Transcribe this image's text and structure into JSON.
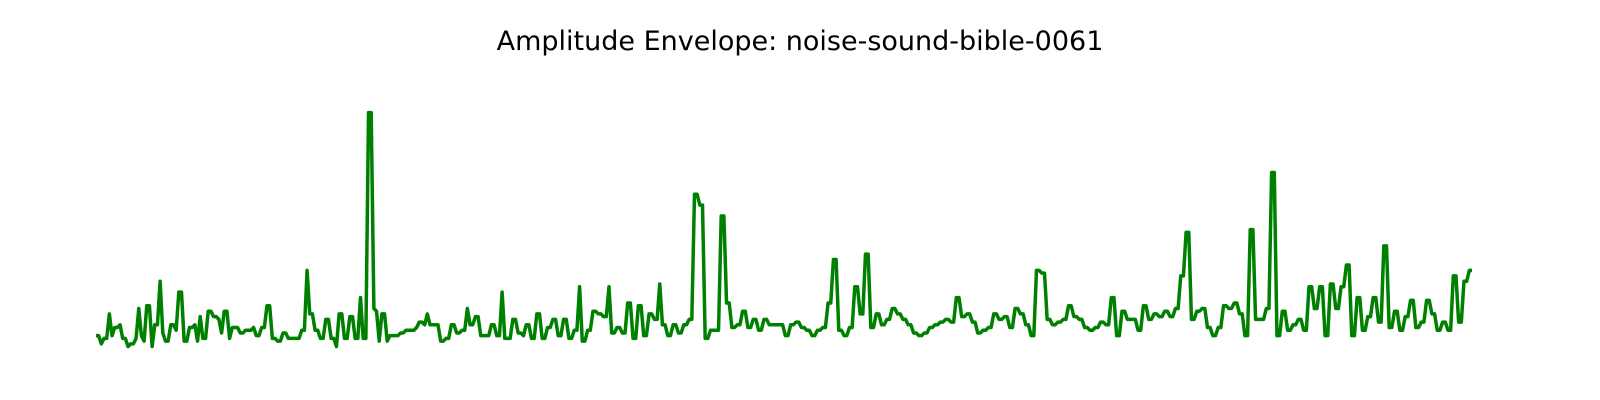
{
  "chart_data": {
    "type": "line",
    "title": "Amplitude Envelope: noise-sound-bible-0061",
    "xlabel": "",
    "ylabel": "",
    "axes_visible": false,
    "grid": false,
    "legend": "none",
    "ylim": [
      0,
      1.0
    ],
    "series": [
      {
        "color": "#008000",
        "values": [
          0.06,
          0.06,
          0.03,
          0.05,
          0.05,
          0.14,
          0.06,
          0.09,
          0.09,
          0.1,
          0.05,
          0.05,
          0.02,
          0.03,
          0.03,
          0.05,
          0.16,
          0.06,
          0.04,
          0.17,
          0.17,
          0.02,
          0.1,
          0.1,
          0.26,
          0.07,
          0.04,
          0.04,
          0.1,
          0.1,
          0.08,
          0.22,
          0.22,
          0.04,
          0.04,
          0.09,
          0.09,
          0.1,
          0.04,
          0.13,
          0.05,
          0.05,
          0.15,
          0.15,
          0.13,
          0.13,
          0.12,
          0.07,
          0.15,
          0.15,
          0.05,
          0.09,
          0.09,
          0.09,
          0.07,
          0.07,
          0.08,
          0.08,
          0.08,
          0.09,
          0.06,
          0.06,
          0.09,
          0.09,
          0.17,
          0.17,
          0.05,
          0.05,
          0.04,
          0.04,
          0.07,
          0.07,
          0.05,
          0.05,
          0.05,
          0.05,
          0.05,
          0.08,
          0.08,
          0.3,
          0.14,
          0.14,
          0.08,
          0.08,
          0.05,
          0.05,
          0.12,
          0.12,
          0.05,
          0.05,
          0.02,
          0.14,
          0.14,
          0.05,
          0.05,
          0.13,
          0.13,
          0.05,
          0.05,
          0.2,
          0.05,
          0.05,
          0.88,
          0.88,
          0.16,
          0.15,
          0.04,
          0.14,
          0.14,
          0.04,
          0.06,
          0.06,
          0.06,
          0.06,
          0.07,
          0.07,
          0.08,
          0.08,
          0.08,
          0.08,
          0.09,
          0.11,
          0.11,
          0.1,
          0.14,
          0.1,
          0.1,
          0.1,
          0.1,
          0.04,
          0.04,
          0.05,
          0.05,
          0.1,
          0.1,
          0.07,
          0.07,
          0.08,
          0.08,
          0.16,
          0.1,
          0.1,
          0.13,
          0.13,
          0.06,
          0.06,
          0.06,
          0.06,
          0.1,
          0.1,
          0.06,
          0.06,
          0.22,
          0.05,
          0.05,
          0.05,
          0.12,
          0.12,
          0.07,
          0.07,
          0.06,
          0.1,
          0.1,
          0.05,
          0.05,
          0.14,
          0.14,
          0.05,
          0.05,
          0.09,
          0.09,
          0.12,
          0.12,
          0.06,
          0.06,
          0.12,
          0.12,
          0.05,
          0.05,
          0.08,
          0.08,
          0.24,
          0.04,
          0.04,
          0.08,
          0.08,
          0.15,
          0.15,
          0.14,
          0.14,
          0.13,
          0.13,
          0.24,
          0.07,
          0.07,
          0.09,
          0.09,
          0.07,
          0.07,
          0.18,
          0.18,
          0.05,
          0.05,
          0.17,
          0.17,
          0.06,
          0.06,
          0.14,
          0.14,
          0.12,
          0.12,
          0.25,
          0.1,
          0.1,
          0.06,
          0.06,
          0.1,
          0.1,
          0.07,
          0.07,
          0.1,
          0.1,
          0.12,
          0.12,
          0.58,
          0.58,
          0.54,
          0.54,
          0.05,
          0.05,
          0.08,
          0.08,
          0.08,
          0.08,
          0.5,
          0.5,
          0.18,
          0.18,
          0.09,
          0.09,
          0.1,
          0.1,
          0.15,
          0.15,
          0.09,
          0.09,
          0.12,
          0.12,
          0.08,
          0.08,
          0.12,
          0.12,
          0.1,
          0.1,
          0.1,
          0.1,
          0.1,
          0.1,
          0.06,
          0.06,
          0.1,
          0.1,
          0.11,
          0.11,
          0.09,
          0.09,
          0.08,
          0.08,
          0.06,
          0.06,
          0.08,
          0.08,
          0.09,
          0.09,
          0.18,
          0.18,
          0.34,
          0.34,
          0.08,
          0.08,
          0.06,
          0.06,
          0.09,
          0.09,
          0.24,
          0.24,
          0.14,
          0.14,
          0.36,
          0.36,
          0.09,
          0.09,
          0.14,
          0.14,
          0.1,
          0.1,
          0.12,
          0.12,
          0.16,
          0.16,
          0.14,
          0.14,
          0.12,
          0.12,
          0.1,
          0.1,
          0.07,
          0.07,
          0.06,
          0.06,
          0.07,
          0.07,
          0.09,
          0.09,
          0.1,
          0.1,
          0.11,
          0.11,
          0.12,
          0.12,
          0.11,
          0.11,
          0.2,
          0.2,
          0.13,
          0.13,
          0.14,
          0.14,
          0.11,
          0.11,
          0.07,
          0.07,
          0.08,
          0.08,
          0.09,
          0.09,
          0.14,
          0.14,
          0.12,
          0.12,
          0.13,
          0.13,
          0.09,
          0.09,
          0.16,
          0.16,
          0.14,
          0.14,
          0.1,
          0.1,
          0.06,
          0.06,
          0.3,
          0.3,
          0.29,
          0.29,
          0.12,
          0.12,
          0.1,
          0.1,
          0.11,
          0.11,
          0.12,
          0.12,
          0.17,
          0.17,
          0.13,
          0.13,
          0.12,
          0.12,
          0.09,
          0.09,
          0.08,
          0.08,
          0.09,
          0.09,
          0.11,
          0.11,
          0.1,
          0.1,
          0.2,
          0.2,
          0.06,
          0.06,
          0.15,
          0.15,
          0.12,
          0.12,
          0.12,
          0.12,
          0.08,
          0.08,
          0.17,
          0.17,
          0.12,
          0.12,
          0.14,
          0.14,
          0.13,
          0.13,
          0.15,
          0.15,
          0.13,
          0.13,
          0.16,
          0.16,
          0.28,
          0.28,
          0.44,
          0.44,
          0.12,
          0.12,
          0.15,
          0.15,
          0.16,
          0.16,
          0.09,
          0.09,
          0.06,
          0.06,
          0.09,
          0.09,
          0.17,
          0.17,
          0.16,
          0.16,
          0.18,
          0.18,
          0.14,
          0.14,
          0.06,
          0.06,
          0.45,
          0.45,
          0.12,
          0.12,
          0.12,
          0.12,
          0.16,
          0.16,
          0.66,
          0.66,
          0.06,
          0.06,
          0.15,
          0.15,
          0.08,
          0.08,
          0.1,
          0.1,
          0.12,
          0.12,
          0.08,
          0.08,
          0.24,
          0.24,
          0.16,
          0.16,
          0.24,
          0.24,
          0.06,
          0.06,
          0.25,
          0.25,
          0.16,
          0.16,
          0.24,
          0.24,
          0.32,
          0.32,
          0.06,
          0.06,
          0.2,
          0.2,
          0.08,
          0.08,
          0.13,
          0.13,
          0.2,
          0.2,
          0.11,
          0.11,
          0.39,
          0.39,
          0.09,
          0.09,
          0.15,
          0.15,
          0.08,
          0.08,
          0.13,
          0.13,
          0.19,
          0.19,
          0.09,
          0.09,
          0.11,
          0.11,
          0.19,
          0.19,
          0.14,
          0.14,
          0.08,
          0.08,
          0.11,
          0.11,
          0.08,
          0.08,
          0.28,
          0.28,
          0.11,
          0.11,
          0.26,
          0.26,
          0.3,
          0.3
        ]
      }
    ]
  }
}
